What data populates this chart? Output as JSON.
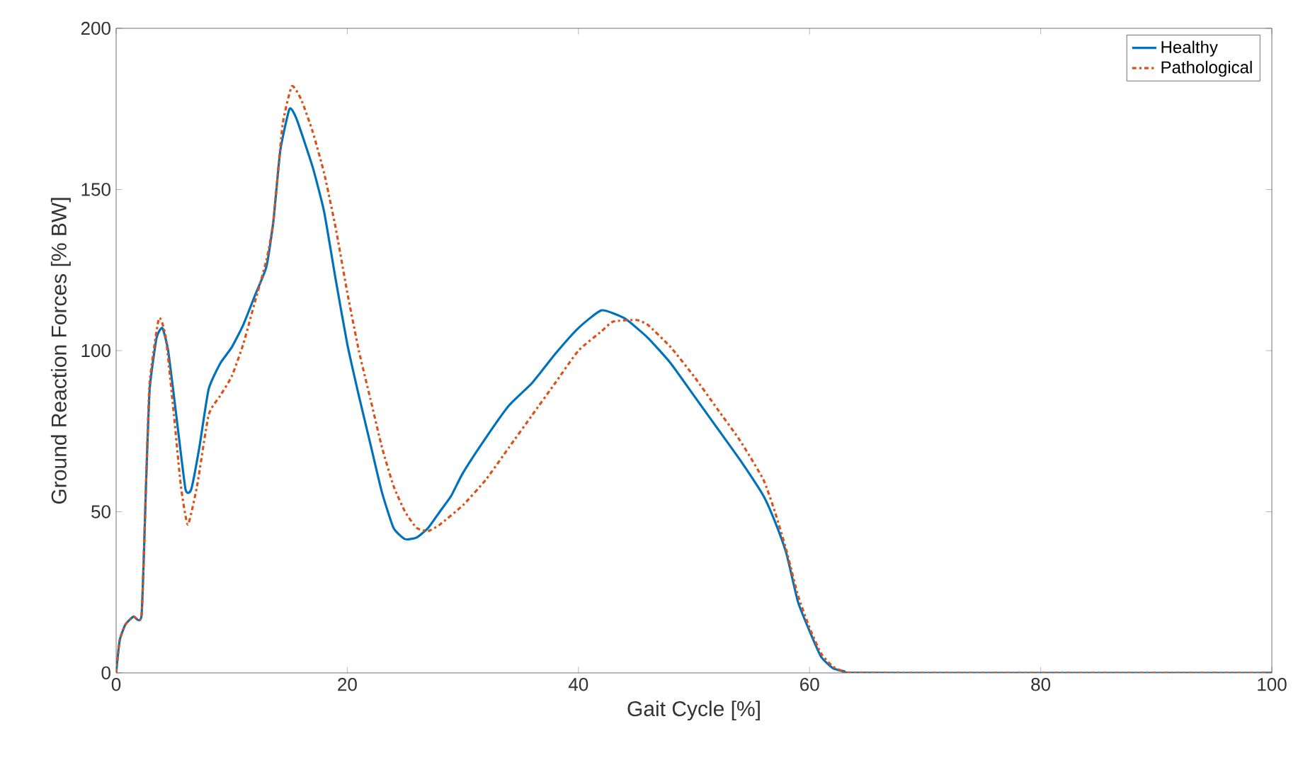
{
  "chart_data": {
    "type": "line",
    "xlabel": "Gait Cycle [%]",
    "ylabel": "Ground Reaction Forces [% BW]",
    "xlim": [
      0,
      100
    ],
    "ylim": [
      0,
      200
    ],
    "xticks": [
      0,
      20,
      40,
      60,
      80,
      100
    ],
    "yticks": [
      0,
      50,
      100,
      150,
      200
    ],
    "legend": "top right",
    "grid": false,
    "series": [
      {
        "name": "Healthy",
        "color": "#0072bd",
        "line_style": "solid",
        "x": [
          0,
          0.3,
          0.8,
          1.5,
          2.2,
          2.6,
          2.9,
          3.5,
          4,
          4.5,
          5.2,
          6,
          6.5,
          7.2,
          8,
          9,
          10,
          11,
          12,
          13,
          13.6,
          14.2,
          15,
          15.6,
          17,
          18,
          19,
          20,
          21,
          22,
          23,
          24,
          25,
          26,
          27,
          28,
          29,
          30,
          32,
          34,
          36,
          38,
          40,
          42,
          44,
          46,
          48,
          50,
          52,
          54,
          56,
          57,
          58,
          59,
          60,
          61,
          62,
          63,
          65,
          100
        ],
        "values": [
          0,
          10,
          15,
          17.5,
          18,
          60,
          88,
          104,
          107,
          100,
          80,
          57,
          57,
          70,
          88,
          96,
          101,
          108,
          117,
          126,
          140,
          162,
          175,
          172,
          157,
          143,
          122,
          102,
          86,
          71,
          56,
          45,
          41.5,
          42,
          45,
          50,
          55,
          62,
          73,
          83,
          90,
          99,
          107,
          112.5,
          110,
          104,
          96,
          86,
          76,
          66,
          55,
          47,
          37,
          22,
          13,
          5,
          1.5,
          0.5,
          0,
          0
        ]
      },
      {
        "name": "Pathological",
        "color": "#d95319",
        "line_style": "dashdot",
        "x": [
          0,
          0.3,
          0.8,
          1.5,
          2.2,
          2.6,
          2.9,
          3.7,
          4.3,
          5,
          5.6,
          6.2,
          7,
          8,
          9,
          10,
          11,
          12,
          13,
          13.6,
          14.4,
          15.2,
          16,
          17,
          18,
          19,
          20,
          21,
          22,
          23,
          24,
          25,
          26,
          27,
          28,
          30,
          32,
          34,
          36,
          38,
          40,
          42,
          43,
          45,
          46,
          48,
          50,
          52,
          54,
          56,
          57,
          58,
          59,
          60,
          61,
          62,
          63,
          65,
          100
        ],
        "values": [
          0,
          10,
          15,
          17.5,
          18,
          60,
          90,
          110,
          104,
          80,
          58,
          46,
          58,
          80,
          86,
          92,
          102,
          115,
          128,
          140,
          170,
          182,
          178,
          168,
          155,
          138,
          118,
          100,
          85,
          70,
          58,
          50,
          45,
          44,
          46,
          52,
          60,
          70,
          80,
          90,
          100,
          106,
          109,
          109.5,
          108,
          101,
          92,
          82,
          72,
          60,
          50,
          38,
          24,
          14,
          6,
          2,
          0.5,
          0,
          0
        ]
      }
    ]
  }
}
